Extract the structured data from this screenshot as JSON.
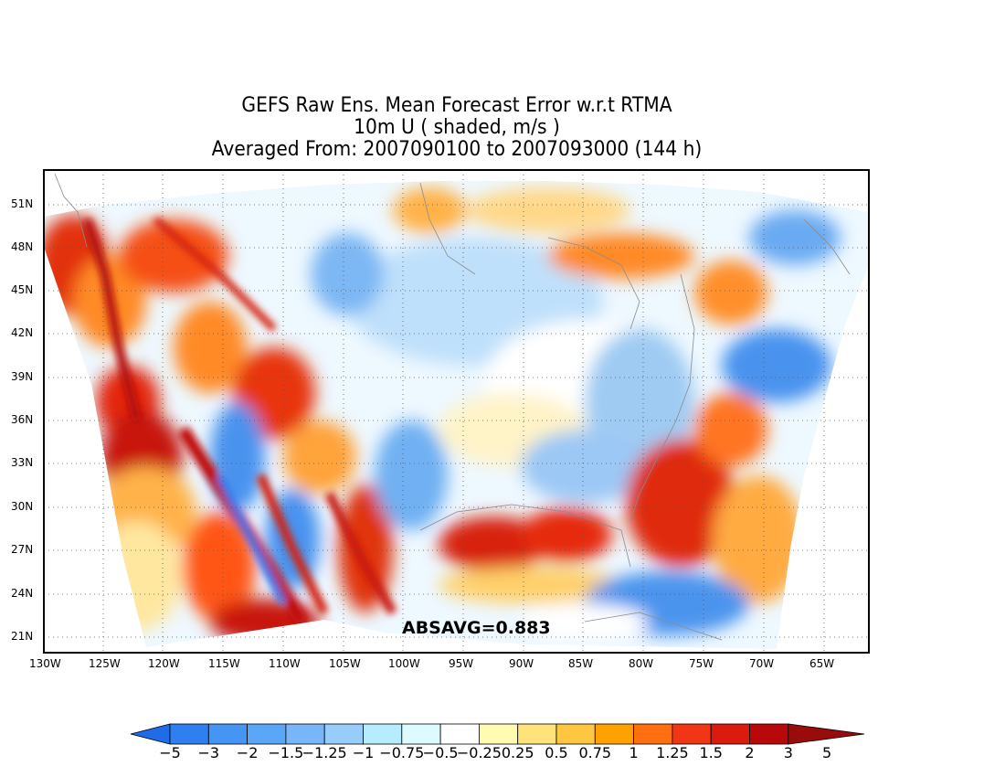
{
  "title": {
    "line1": "GEFS Raw Ens. Mean Forecast Error w.r.t RTMA",
    "line2": "10m U ( shaded, m/s )",
    "line3": "Averaged From: 2007090100 to 2007093000 (144 h)"
  },
  "map": {
    "lat_labels": [
      "51N",
      "48N",
      "45N",
      "42N",
      "39N",
      "36N",
      "33N",
      "30N",
      "27N",
      "24N",
      "21N"
    ],
    "lon_labels": [
      "130W",
      "125W",
      "120W",
      "115W",
      "110W",
      "105W",
      "100W",
      "95W",
      "90W",
      "85W",
      "80W",
      "75W",
      "70W",
      "65W"
    ],
    "grid": "dotted",
    "annotation": "ABSAVG=0.883"
  },
  "colorbar": {
    "labels": [
      "−5",
      "−3",
      "−2",
      "−1.5",
      "−1.25",
      "−1",
      "−0.75",
      "−0.5",
      "−0.25",
      "0.25",
      "0.5",
      "0.75",
      "1",
      "1.25",
      "1.5",
      "2",
      "3",
      "5"
    ],
    "colors": [
      "#1f6be8",
      "#2f7ff0",
      "#4595f5",
      "#5aa6f7",
      "#78b6f7",
      "#98ccfa",
      "#b6ecfb",
      "#ddfbff",
      "#ffffff",
      "#fffbb0",
      "#ffe27a",
      "#ffc640",
      "#ffa200",
      "#ff6e0f",
      "#f03614",
      "#db1b0e",
      "#b90809",
      "#9a0c0c"
    ]
  }
}
